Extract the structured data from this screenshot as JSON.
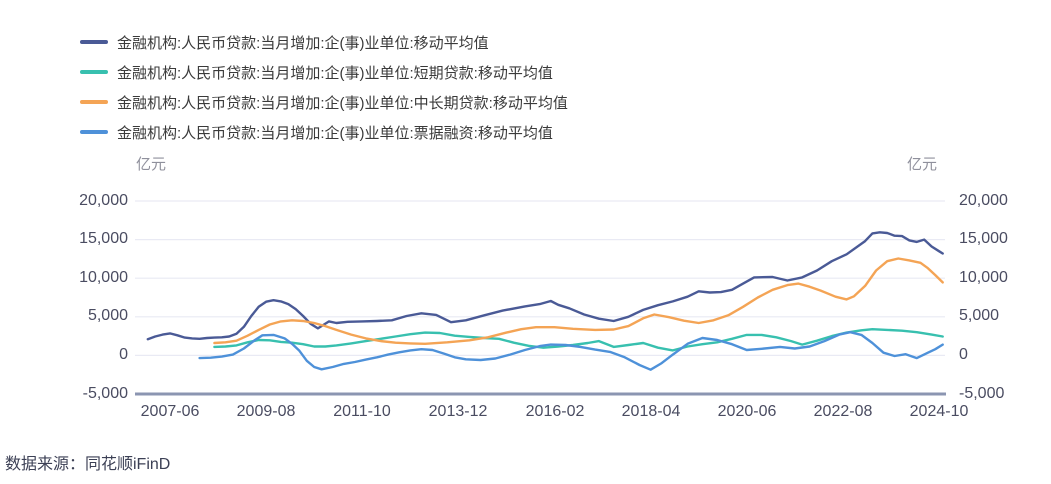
{
  "source": {
    "text": "数据来源：同花顺iFinD"
  },
  "chart_data": {
    "type": "line",
    "unit_label_left": "亿元",
    "unit_label_right": "亿元",
    "grid": true,
    "legend_position": "top-left",
    "colors": {
      "grid": "#e9eaf4",
      "axis_line": "#8b95b1",
      "tick_text": "#4a4c61"
    },
    "y_axis": {
      "range": [
        -5000,
        20000
      ],
      "ticks": [
        20000,
        15000,
        10000,
        5000,
        0,
        -5000
      ],
      "tick_labels": [
        "20,000",
        "15,000",
        "10,000",
        "5,000",
        "0",
        "-5,000"
      ]
    },
    "x_axis": {
      "tick_labels": [
        "2007-06",
        "2009-08",
        "2011-10",
        "2013-12",
        "2016-02",
        "2018-04",
        "2020-06",
        "2022-08",
        "2024-10"
      ]
    },
    "series": [
      {
        "name": "金融机构:人民币贷款:当月增加:企(事)业单位:移动平均值",
        "color": "#4a5a96",
        "points": [
          [
            "2006-12",
            2100
          ],
          [
            "2007-02",
            2450
          ],
          [
            "2007-04",
            2700
          ],
          [
            "2007-06",
            2850
          ],
          [
            "2007-08",
            2600
          ],
          [
            "2007-10",
            2300
          ],
          [
            "2007-12",
            2200
          ],
          [
            "2008-02",
            2150
          ],
          [
            "2008-04",
            2250
          ],
          [
            "2008-06",
            2300
          ],
          [
            "2008-08",
            2350
          ],
          [
            "2008-10",
            2450
          ],
          [
            "2008-12",
            2800
          ],
          [
            "2009-02",
            3700
          ],
          [
            "2009-04",
            5100
          ],
          [
            "2009-06",
            6300
          ],
          [
            "2009-08",
            6950
          ],
          [
            "2009-10",
            7150
          ],
          [
            "2009-12",
            7000
          ],
          [
            "2010-02",
            6650
          ],
          [
            "2010-04",
            6000
          ],
          [
            "2010-06",
            5100
          ],
          [
            "2010-08",
            4100
          ],
          [
            "2010-10",
            3500
          ],
          [
            "2011-01",
            4400
          ],
          [
            "2011-03",
            4200
          ],
          [
            "2011-06",
            4350
          ],
          [
            "2011-10",
            4400
          ],
          [
            "2012-02",
            4450
          ],
          [
            "2012-06",
            4550
          ],
          [
            "2012-10",
            5100
          ],
          [
            "2013-02",
            5450
          ],
          [
            "2013-06",
            5250
          ],
          [
            "2013-10",
            4300
          ],
          [
            "2014-02",
            4550
          ],
          [
            "2014-07",
            5200
          ],
          [
            "2014-12",
            5800
          ],
          [
            "2015-06",
            6350
          ],
          [
            "2015-10",
            6650
          ],
          [
            "2016-01",
            7050
          ],
          [
            "2016-03",
            6550
          ],
          [
            "2016-06",
            6100
          ],
          [
            "2016-10",
            5300
          ],
          [
            "2017-02",
            4750
          ],
          [
            "2017-06",
            4450
          ],
          [
            "2017-10",
            5000
          ],
          [
            "2018-02",
            5900
          ],
          [
            "2018-06",
            6500
          ],
          [
            "2018-10",
            7000
          ],
          [
            "2019-02",
            7600
          ],
          [
            "2019-05",
            8300
          ],
          [
            "2019-08",
            8150
          ],
          [
            "2019-11",
            8200
          ],
          [
            "2020-02",
            8500
          ],
          [
            "2020-05",
            9300
          ],
          [
            "2020-08",
            10100
          ],
          [
            "2021-01",
            10150
          ],
          [
            "2021-05",
            9700
          ],
          [
            "2021-09",
            10100
          ],
          [
            "2022-01",
            11000
          ],
          [
            "2022-05",
            12200
          ],
          [
            "2022-09",
            13100
          ],
          [
            "2023-02",
            14800
          ],
          [
            "2023-04",
            15800
          ],
          [
            "2023-06",
            15950
          ],
          [
            "2023-08",
            15850
          ],
          [
            "2023-10",
            15500
          ],
          [
            "2023-12",
            15450
          ],
          [
            "2024-02",
            14900
          ],
          [
            "2024-04",
            14700
          ],
          [
            "2024-06",
            15000
          ],
          [
            "2024-08",
            14100
          ],
          [
            "2024-10",
            13500
          ],
          [
            "2024-11",
            13200
          ]
        ]
      },
      {
        "name": "金融机构:人民币贷款:当月增加:企(事)业单位:短期贷款:移动平均值",
        "color": "#38c0af",
        "points": [
          [
            "2008-06",
            1100
          ],
          [
            "2008-09",
            1150
          ],
          [
            "2008-12",
            1300
          ],
          [
            "2009-03",
            1700
          ],
          [
            "2009-06",
            2000
          ],
          [
            "2009-09",
            1950
          ],
          [
            "2009-12",
            1750
          ],
          [
            "2010-03",
            1650
          ],
          [
            "2010-06",
            1450
          ],
          [
            "2010-09",
            1150
          ],
          [
            "2010-12",
            1150
          ],
          [
            "2011-03",
            1300
          ],
          [
            "2011-07",
            1550
          ],
          [
            "2011-11",
            1850
          ],
          [
            "2012-03",
            2150
          ],
          [
            "2012-07",
            2450
          ],
          [
            "2012-11",
            2750
          ],
          [
            "2013-03",
            2950
          ],
          [
            "2013-07",
            2900
          ],
          [
            "2013-11",
            2550
          ],
          [
            "2014-03",
            2400
          ],
          [
            "2014-07",
            2250
          ],
          [
            "2014-11",
            2150
          ],
          [
            "2015-03",
            1650
          ],
          [
            "2015-07",
            1250
          ],
          [
            "2015-11",
            1000
          ],
          [
            "2016-03",
            1150
          ],
          [
            "2016-07",
            1350
          ],
          [
            "2016-11",
            1600
          ],
          [
            "2017-02",
            1850
          ],
          [
            "2017-06",
            1100
          ],
          [
            "2017-10",
            1350
          ],
          [
            "2018-02",
            1600
          ],
          [
            "2018-06",
            1000
          ],
          [
            "2018-10",
            650
          ],
          [
            "2019-02",
            1150
          ],
          [
            "2019-06",
            1450
          ],
          [
            "2019-10",
            1700
          ],
          [
            "2020-02",
            2150
          ],
          [
            "2020-06",
            2650
          ],
          [
            "2020-10",
            2650
          ],
          [
            "2021-02",
            2350
          ],
          [
            "2021-06",
            1850
          ],
          [
            "2021-09",
            1400
          ],
          [
            "2022-01",
            1900
          ],
          [
            "2022-05",
            2500
          ],
          [
            "2022-09",
            2950
          ],
          [
            "2023-01",
            3250
          ],
          [
            "2023-04",
            3400
          ],
          [
            "2023-08",
            3300
          ],
          [
            "2023-12",
            3200
          ],
          [
            "2024-04",
            3000
          ],
          [
            "2024-08",
            2700
          ],
          [
            "2024-11",
            2450
          ]
        ]
      },
      {
        "name": "金融机构:人民币贷款:当月增加:企(事)业单位:中长期贷款:移动平均值",
        "color": "#f4a455",
        "points": [
          [
            "2008-06",
            1600
          ],
          [
            "2008-09",
            1700
          ],
          [
            "2008-12",
            1900
          ],
          [
            "2009-03",
            2550
          ],
          [
            "2009-06",
            3300
          ],
          [
            "2009-09",
            4000
          ],
          [
            "2009-12",
            4400
          ],
          [
            "2010-03",
            4550
          ],
          [
            "2010-06",
            4450
          ],
          [
            "2010-09",
            4200
          ],
          [
            "2010-12",
            3800
          ],
          [
            "2011-03",
            3300
          ],
          [
            "2011-07",
            2700
          ],
          [
            "2011-11",
            2200
          ],
          [
            "2012-03",
            1850
          ],
          [
            "2012-07",
            1650
          ],
          [
            "2012-11",
            1550
          ],
          [
            "2013-03",
            1500
          ],
          [
            "2013-09",
            1700
          ],
          [
            "2014-03",
            1950
          ],
          [
            "2014-08",
            2350
          ],
          [
            "2015-01",
            2950
          ],
          [
            "2015-05",
            3400
          ],
          [
            "2015-09",
            3650
          ],
          [
            "2016-02",
            3650
          ],
          [
            "2016-07",
            3450
          ],
          [
            "2017-01",
            3300
          ],
          [
            "2017-06",
            3350
          ],
          [
            "2017-10",
            3800
          ],
          [
            "2018-02",
            4800
          ],
          [
            "2018-05",
            5300
          ],
          [
            "2018-09",
            4950
          ],
          [
            "2019-01",
            4500
          ],
          [
            "2019-05",
            4200
          ],
          [
            "2019-09",
            4550
          ],
          [
            "2020-01",
            5200
          ],
          [
            "2020-05",
            6300
          ],
          [
            "2020-09",
            7500
          ],
          [
            "2021-01",
            8500
          ],
          [
            "2021-05",
            9100
          ],
          [
            "2021-08",
            9300
          ],
          [
            "2021-11",
            8900
          ],
          [
            "2022-02",
            8400
          ],
          [
            "2022-06",
            7600
          ],
          [
            "2022-09",
            7250
          ],
          [
            "2022-11",
            7650
          ],
          [
            "2023-02",
            9000
          ],
          [
            "2023-05",
            11000
          ],
          [
            "2023-08",
            12200
          ],
          [
            "2023-11",
            12550
          ],
          [
            "2024-02",
            12300
          ],
          [
            "2024-05",
            12000
          ],
          [
            "2024-07",
            11300
          ],
          [
            "2024-09",
            10400
          ],
          [
            "2024-11",
            9450
          ]
        ]
      },
      {
        "name": "金融机构:人民币贷款:当月增加:企(事)业单位:票据融资:移动平均值",
        "color": "#4e91d9",
        "points": [
          [
            "2008-02",
            -350
          ],
          [
            "2008-05",
            -300
          ],
          [
            "2008-08",
            -150
          ],
          [
            "2008-11",
            100
          ],
          [
            "2009-02",
            900
          ],
          [
            "2009-05",
            2000
          ],
          [
            "2009-07",
            2600
          ],
          [
            "2009-10",
            2650
          ],
          [
            "2010-01",
            2200
          ],
          [
            "2010-03",
            1500
          ],
          [
            "2010-05",
            600
          ],
          [
            "2010-07",
            -700
          ],
          [
            "2010-09",
            -1500
          ],
          [
            "2010-11",
            -1800
          ],
          [
            "2011-02",
            -1500
          ],
          [
            "2011-05",
            -1100
          ],
          [
            "2011-08",
            -850
          ],
          [
            "2011-11",
            -550
          ],
          [
            "2012-02",
            -250
          ],
          [
            "2012-05",
            100
          ],
          [
            "2012-08",
            400
          ],
          [
            "2012-11",
            650
          ],
          [
            "2013-02",
            800
          ],
          [
            "2013-05",
            700
          ],
          [
            "2013-08",
            250
          ],
          [
            "2013-11",
            -250
          ],
          [
            "2014-02",
            -500
          ],
          [
            "2014-06",
            -600
          ],
          [
            "2014-10",
            -400
          ],
          [
            "2015-02",
            100
          ],
          [
            "2015-06",
            700
          ],
          [
            "2015-10",
            1200
          ],
          [
            "2016-01",
            1400
          ],
          [
            "2016-05",
            1350
          ],
          [
            "2016-09",
            1100
          ],
          [
            "2017-01",
            750
          ],
          [
            "2017-05",
            450
          ],
          [
            "2017-09",
            -250
          ],
          [
            "2018-01",
            -1250
          ],
          [
            "2018-04",
            -1850
          ],
          [
            "2018-07",
            -1000
          ],
          [
            "2018-10",
            100
          ],
          [
            "2019-02",
            1500
          ],
          [
            "2019-06",
            2250
          ],
          [
            "2019-10",
            2000
          ],
          [
            "2020-02",
            1450
          ],
          [
            "2020-06",
            700
          ],
          [
            "2020-10",
            850
          ],
          [
            "2021-03",
            1100
          ],
          [
            "2021-07",
            900
          ],
          [
            "2021-11",
            1150
          ],
          [
            "2022-03",
            1850
          ],
          [
            "2022-07",
            2700
          ],
          [
            "2022-10",
            3000
          ],
          [
            "2023-01",
            2650
          ],
          [
            "2023-04",
            1600
          ],
          [
            "2023-07",
            350
          ],
          [
            "2023-10",
            -80
          ],
          [
            "2024-01",
            150
          ],
          [
            "2024-04",
            -350
          ],
          [
            "2024-07",
            350
          ],
          [
            "2024-09",
            800
          ],
          [
            "2024-11",
            1400
          ]
        ]
      }
    ]
  }
}
